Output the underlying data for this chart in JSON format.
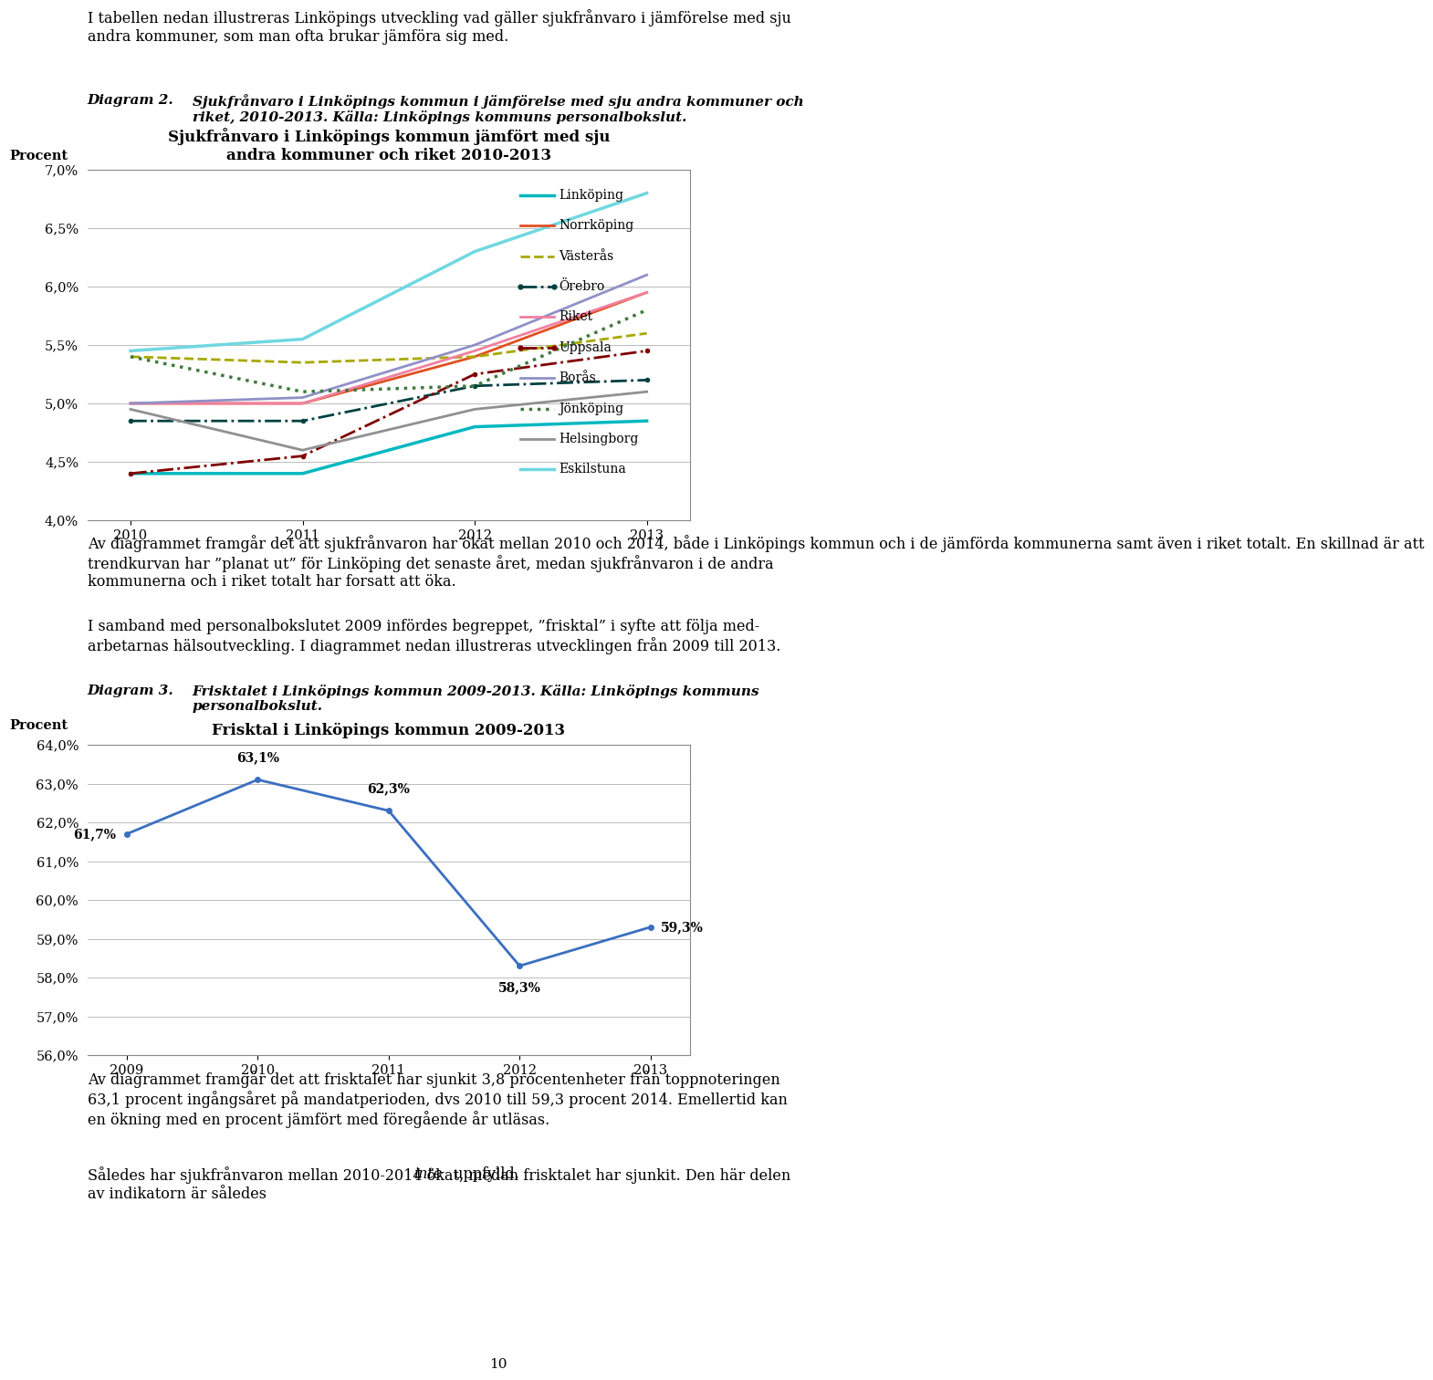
{
  "chart1": {
    "title": "Sjukfrånvaro i Linköpings kommun jämfört med sju\nandra kommuner och riket 2010-2013",
    "ylabel": "Procent",
    "years": [
      2010,
      2011,
      2012,
      2013
    ],
    "ylim": [
      4.0,
      7.0
    ],
    "yticks": [
      4.0,
      4.5,
      5.0,
      5.5,
      6.0,
      6.5,
      7.0
    ],
    "legend_order": [
      "Linköping",
      "Norrköping",
      "Västerås",
      "Örebro",
      "Riket",
      "Uppsala",
      "Borås",
      "Jönköping",
      "Helsingborg",
      "Eskilstuna"
    ]
  },
  "series_values": {
    "Linköping": [
      4.4,
      4.4,
      4.8,
      4.85
    ],
    "Norrköping": [
      5.0,
      5.0,
      5.4,
      5.95
    ],
    "Västerås": [
      5.4,
      5.35,
      5.4,
      5.6
    ],
    "Örebro": [
      4.85,
      4.85,
      5.15,
      5.2
    ],
    "Riket": [
      5.0,
      5.0,
      5.45,
      5.95
    ],
    "Uppsala": [
      4.4,
      4.55,
      5.25,
      5.45
    ],
    "Borås": [
      5.0,
      5.05,
      5.5,
      6.1
    ],
    "Jönköping": [
      5.4,
      5.1,
      5.15,
      5.8
    ],
    "Helsingborg": [
      4.95,
      4.6,
      4.95,
      5.1
    ],
    "Eskilstuna": [
      5.45,
      5.55,
      6.3,
      6.8
    ]
  },
  "series_styles": {
    "Linköping": {
      "color": "#00B8C0",
      "ls": "-",
      "lw": 2.5,
      "marker": null,
      "ms": 0
    },
    "Norrköping": {
      "color": "#E05020",
      "ls": "-",
      "lw": 2.0,
      "marker": null,
      "ms": 0
    },
    "Västerås": {
      "color": "#A8A800",
      "ls": "--",
      "lw": 2.0,
      "marker": null,
      "ms": 0
    },
    "Örebro": {
      "color": "#004040",
      "ls": "-.",
      "lw": 2.0,
      "marker": "o",
      "ms": 3
    },
    "Riket": {
      "color": "#F080A0",
      "ls": "-",
      "lw": 2.0,
      "marker": null,
      "ms": 0
    },
    "Uppsala": {
      "color": "#800000",
      "ls": "-.",
      "lw": 2.0,
      "marker": "o",
      "ms": 3
    },
    "Borås": {
      "color": "#9090C8",
      "ls": "-",
      "lw": 2.0,
      "marker": null,
      "ms": 0
    },
    "Jönköping": {
      "color": "#3E7A3E",
      "ls": ":",
      "lw": 2.5,
      "marker": null,
      "ms": 0
    },
    "Helsingborg": {
      "color": "#909090",
      "ls": "-",
      "lw": 2.0,
      "marker": null,
      "ms": 0
    },
    "Eskilstuna": {
      "color": "#70D8E0",
      "ls": "-",
      "lw": 2.5,
      "marker": null,
      "ms": 0
    }
  },
  "chart2": {
    "title": "Frisktal i Linköpings kommun 2009-2013",
    "ylabel": "Procent",
    "years": [
      2009,
      2010,
      2011,
      2012,
      2013
    ],
    "values": [
      61.7,
      63.1,
      62.3,
      58.3,
      59.3
    ],
    "labels": [
      "61,7%",
      "63,1%",
      "62,3%",
      "58,3%",
      "59,3%"
    ],
    "ylim": [
      56.0,
      64.0
    ],
    "yticks": [
      56.0,
      57.0,
      58.0,
      59.0,
      60.0,
      61.0,
      62.0,
      63.0,
      64.0
    ],
    "color": "#3A6FBF",
    "linestyle": "-",
    "linewidth": 2.0,
    "marker": "o",
    "marker_size": 4
  }
}
